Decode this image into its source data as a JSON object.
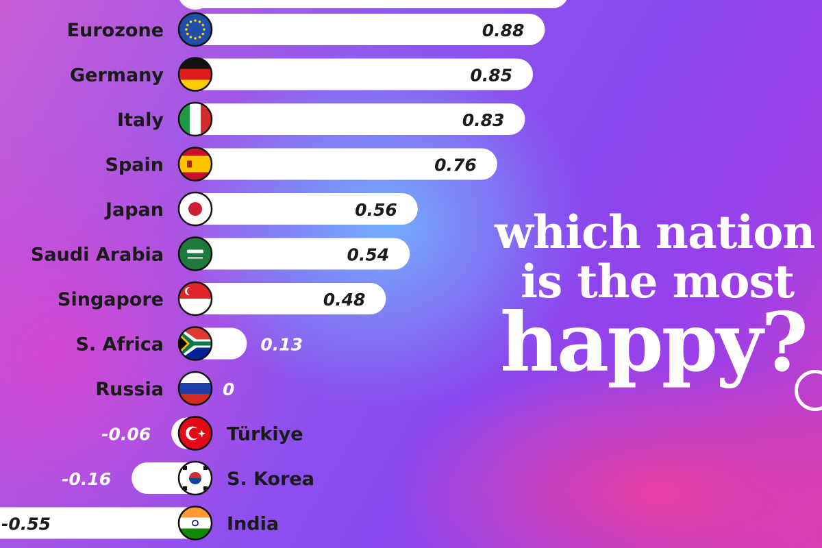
{
  "chart_data": {
    "type": "bar",
    "orientation": "horizontal",
    "title_lines": [
      "which nation",
      "is the most",
      "happy?"
    ],
    "categories": [
      "Eurozone",
      "Germany",
      "Italy",
      "Spain",
      "Japan",
      "Saudi Arabia",
      "Singapore",
      "S. Africa",
      "Russia",
      "Türkiye",
      "S. Korea",
      "India"
    ],
    "values": [
      0.88,
      0.85,
      0.83,
      0.76,
      0.56,
      0.54,
      0.48,
      0.13,
      0,
      -0.06,
      -0.16,
      -0.55
    ],
    "value_labels": [
      "0.88",
      "0.85",
      "0.83",
      "0.76",
      "0.56",
      "0.54",
      "0.48",
      "0.13",
      "0",
      "-0.06",
      "-0.16",
      "-0.55"
    ],
    "flags": [
      "eu-flag-icon",
      "germany-flag-icon",
      "italy-flag-icon",
      "spain-flag-icon",
      "japan-flag-icon",
      "saudi-arabia-flag-icon",
      "singapore-flag-icon",
      "south-africa-flag-icon",
      "russia-flag-icon",
      "turkiye-flag-icon",
      "south-korea-flag-icon",
      "india-flag-icon"
    ],
    "colors": {
      "bar": "#ffffff",
      "label": "#1a1a1a",
      "outside_label": "#ffffff",
      "title": "#ffffff"
    },
    "xlim": [
      -0.55,
      0.95
    ],
    "grid": false,
    "legend": "none"
  }
}
